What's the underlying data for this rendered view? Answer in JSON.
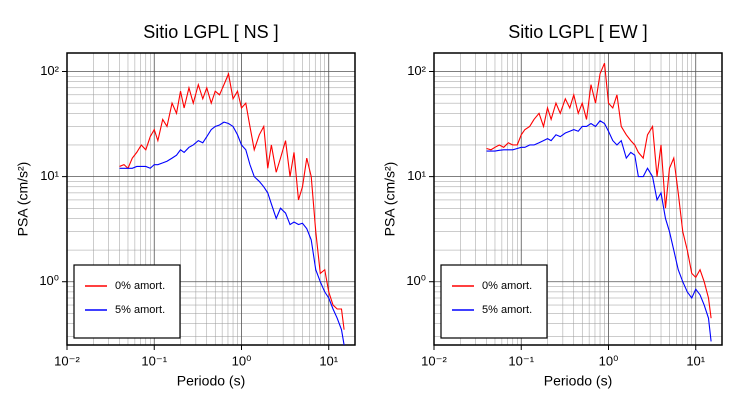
{
  "chart_data": [
    {
      "type": "line",
      "title": "Sitio LGPL [ NS ]",
      "x_label": "Periodo (s)",
      "y_label": "PSA (cm/s²)",
      "log_x": true,
      "log_y": true,
      "grid": true,
      "minor_grid": true,
      "legend": "lower left",
      "xlim": [
        0.01,
        20
      ],
      "ylim": [
        0.25,
        150
      ],
      "xticks": [
        {
          "value": 0.01,
          "label": "10⁻²"
        },
        {
          "value": 0.1,
          "label": "10⁻¹"
        },
        {
          "value": 1,
          "label": "10⁰"
        },
        {
          "value": 10,
          "label": "10¹"
        }
      ],
      "yticks": [
        {
          "value": 1,
          "label": "10⁰"
        },
        {
          "value": 10,
          "label": "10¹"
        },
        {
          "value": 100,
          "label": "10²"
        }
      ],
      "x": [
        0.04,
        0.045,
        0.05,
        0.056,
        0.063,
        0.071,
        0.08,
        0.09,
        0.1,
        0.11,
        0.125,
        0.14,
        0.16,
        0.18,
        0.2,
        0.22,
        0.25,
        0.28,
        0.32,
        0.36,
        0.4,
        0.45,
        0.5,
        0.56,
        0.63,
        0.71,
        0.8,
        0.9,
        1.0,
        1.12,
        1.25,
        1.4,
        1.6,
        1.8,
        2.0,
        2.2,
        2.5,
        2.8,
        3.2,
        3.6,
        4.0,
        4.5,
        5.0,
        5.6,
        6.3,
        7.1,
        8.0,
        9.0,
        10,
        11.2,
        12.5,
        14,
        15
      ],
      "series": [
        {
          "name": "0% amort.",
          "color": "#ff0000",
          "values": [
            12.5,
            13,
            12,
            15,
            17,
            20,
            18,
            24,
            28,
            22,
            35,
            30,
            50,
            40,
            65,
            45,
            70,
            50,
            75,
            55,
            70,
            50,
            65,
            60,
            75,
            95,
            55,
            65,
            45,
            50,
            30,
            18,
            25,
            30,
            12,
            20,
            11,
            15,
            22,
            10,
            17,
            6,
            8,
            15,
            10,
            3,
            1.2,
            1.3,
            0.8,
            0.6,
            0.55,
            0.55,
            0.35
          ]
        },
        {
          "name": "5% amort.",
          "color": "#0000ff",
          "values": [
            12,
            12,
            12,
            12,
            12.5,
            12.5,
            12.5,
            12,
            13,
            13,
            13.5,
            14,
            15,
            16,
            18,
            17,
            19,
            20,
            22,
            21,
            24,
            28,
            30,
            31,
            33,
            32,
            30,
            25,
            20,
            18,
            13,
            10,
            9,
            8,
            7,
            5.5,
            4,
            5,
            4.5,
            3.5,
            3.7,
            3.5,
            3.6,
            3.2,
            2.5,
            1.3,
            1.0,
            0.8,
            0.7,
            0.55,
            0.45,
            0.35,
            0.25
          ]
        }
      ]
    },
    {
      "type": "line",
      "title": "Sitio LGPL [ EW ]",
      "x_label": "Periodo (s)",
      "y_label": "PSA (cm/s²)",
      "log_x": true,
      "log_y": true,
      "grid": true,
      "minor_grid": true,
      "legend": "lower left",
      "xlim": [
        0.01,
        20
      ],
      "ylim": [
        0.25,
        150
      ],
      "xticks": [
        {
          "value": 0.01,
          "label": "10⁻²"
        },
        {
          "value": 0.1,
          "label": "10⁻¹"
        },
        {
          "value": 1,
          "label": "10⁰"
        },
        {
          "value": 10,
          "label": "10¹"
        }
      ],
      "yticks": [
        {
          "value": 1,
          "label": "10⁰"
        },
        {
          "value": 10,
          "label": "10¹"
        },
        {
          "value": 100,
          "label": "10²"
        }
      ],
      "x": [
        0.04,
        0.045,
        0.05,
        0.056,
        0.063,
        0.071,
        0.08,
        0.09,
        0.1,
        0.11,
        0.125,
        0.14,
        0.16,
        0.18,
        0.2,
        0.22,
        0.25,
        0.28,
        0.32,
        0.36,
        0.4,
        0.45,
        0.5,
        0.56,
        0.63,
        0.71,
        0.8,
        0.9,
        1.0,
        1.12,
        1.25,
        1.4,
        1.6,
        1.8,
        2.0,
        2.2,
        2.5,
        2.8,
        3.2,
        3.6,
        4.0,
        4.5,
        5.0,
        5.6,
        6.3,
        7.1,
        8.0,
        9.0,
        10,
        11.2,
        12.5,
        14,
        15
      ],
      "series": [
        {
          "name": "0% amort.",
          "color": "#ff0000",
          "values": [
            18.5,
            18,
            19,
            20,
            19,
            21,
            20,
            20,
            25,
            28,
            30,
            35,
            40,
            30,
            45,
            35,
            50,
            40,
            55,
            45,
            60,
            40,
            50,
            35,
            75,
            50,
            95,
            120,
            50,
            45,
            60,
            30,
            25,
            22,
            20,
            17,
            15,
            25,
            30,
            10,
            20,
            5,
            12,
            15,
            7,
            3,
            2,
            1.2,
            1.1,
            1.3,
            1.0,
            0.7,
            0.45
          ]
        },
        {
          "name": "5% amort.",
          "color": "#0000ff",
          "values": [
            17.5,
            17.5,
            17.5,
            17.8,
            18,
            18,
            18,
            18.5,
            19,
            19,
            20,
            20,
            21,
            22,
            23,
            22,
            25,
            24,
            26,
            27,
            28,
            27,
            30,
            30,
            32,
            30,
            34,
            32,
            27,
            22,
            20,
            22,
            15,
            17,
            16,
            10,
            10,
            12,
            10,
            6,
            7,
            4,
            3,
            2,
            1.3,
            1,
            0.8,
            0.7,
            0.85,
            0.75,
            0.6,
            0.45,
            0.27
          ]
        }
      ]
    }
  ]
}
